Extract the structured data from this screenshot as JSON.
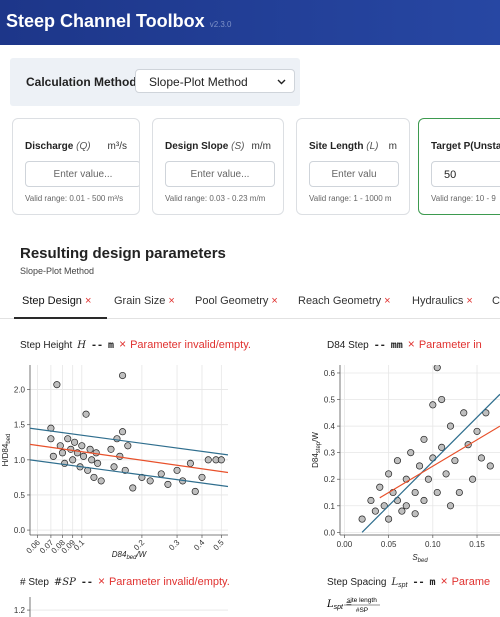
{
  "header": {
    "title": "Steep Channel Toolbox",
    "version": "v2.3.0"
  },
  "method": {
    "label": "Calculation Method",
    "selected": "Slope-Plot Method"
  },
  "inputs": [
    {
      "label": "Discharge",
      "symbol": "(Q)",
      "unit": "m³/s",
      "placeholder": "Enter value...",
      "range": "Valid range: 0.01 - 500 m³/s"
    },
    {
      "label": "Design Slope",
      "symbol": "(S)",
      "unit": "m/m",
      "placeholder": "Enter value...",
      "range": "Valid range: 0.03 - 0.23 m/m"
    },
    {
      "label": "Site Length",
      "symbol": "(L)",
      "unit": "m",
      "placeholder": "Enter valu",
      "range": "Valid range: 1 - 1000 m"
    },
    {
      "label": "Target P(Unstab",
      "value": "50",
      "range": "Valid range: 10 - 9"
    }
  ],
  "results": {
    "title": "Resulting design parameters",
    "subtitle": "Slope-Plot Method"
  },
  "icon": "×",
  "tabs": [
    "Step Design",
    "Grain Size",
    "Pool Geometry",
    "Reach Geometry",
    "Hydraulics",
    "C"
  ],
  "chart_data": [
    {
      "type": "scatter",
      "title": {
        "name": "Step Height",
        "symbol": "H",
        "value": "--",
        "unit": "m",
        "status": "Parameter invalid/empty."
      },
      "x_label": {
        "base": "D84",
        "sub": "bed",
        "rest": "/W"
      },
      "y_label": {
        "base": "H/D84",
        "sub": "bed"
      },
      "xscale": "log",
      "xlim": [
        0.055,
        0.54
      ],
      "ylim": [
        -0.07,
        2.35
      ],
      "xticks": [
        0.06,
        0.07,
        0.08,
        0.09,
        0.1,
        0.2,
        0.3,
        0.4,
        0.5
      ],
      "yticks": [
        {
          "value": 0,
          "label": "0.0"
        },
        0.5,
        {
          "value": 1,
          "label": "1.0"
        },
        1.5,
        {
          "value": 2,
          "label": "2.0"
        }
      ],
      "grid": true,
      "series": [
        {
          "type": "points",
          "color": "#b4b4b4",
          "x": [
            0.05,
            0.075,
            0.07,
            0.07,
            0.072,
            0.078,
            0.08,
            0.082,
            0.085,
            0.088,
            0.09,
            0.092,
            0.095,
            0.098,
            0.1,
            0.102,
            0.105,
            0.107,
            0.11,
            0.112,
            0.115,
            0.118,
            0.12,
            0.125,
            0.14,
            0.145,
            0.15,
            0.155,
            0.16,
            0.16,
            0.165,
            0.17,
            0.18,
            0.2,
            0.22,
            0.25,
            0.27,
            0.3,
            0.32,
            0.35,
            0.37,
            0.4,
            0.43,
            0.47,
            0.5
          ],
          "y": [
            1.25,
            2.07,
            1.45,
            1.3,
            1.05,
            1.2,
            1.1,
            0.95,
            1.3,
            1.15,
            1.0,
            1.25,
            1.1,
            0.9,
            1.2,
            1.05,
            1.65,
            0.85,
            1.15,
            1.0,
            0.75,
            1.1,
            0.95,
            0.7,
            1.15,
            0.9,
            1.3,
            1.05,
            2.2,
            1.4,
            0.85,
            1.2,
            0.6,
            0.75,
            0.7,
            0.8,
            0.65,
            0.85,
            0.7,
            0.95,
            0.55,
            0.75,
            1.0,
            1.0,
            1.0
          ]
        },
        {
          "type": "line",
          "color": "#2f6e8e",
          "x": [
            0.055,
            0.54
          ],
          "y": [
            1.45,
            1.07
          ]
        },
        {
          "type": "line",
          "color": "#e8502a",
          "x": [
            0.055,
            0.54
          ],
          "y": [
            1.22,
            0.82
          ]
        },
        {
          "type": "line",
          "color": "#2f6e8e",
          "x": [
            0.055,
            0.54
          ],
          "y": [
            1.0,
            0.62
          ]
        }
      ]
    },
    {
      "type": "scatter",
      "title": {
        "name": "D84 Step",
        "value": "--",
        "unit": "mm",
        "status": "Parameter in"
      },
      "x_label": {
        "base": "S",
        "sub": "bed"
      },
      "y_label": {
        "base": "D84",
        "sub": "step",
        "rest": "/W"
      },
      "xlim": [
        -0.005,
        0.176
      ],
      "ylim": [
        -0.01,
        0.63
      ],
      "xticks": [
        {
          "value": 0,
          "label": "0.00"
        },
        {
          "value": 0.05,
          "label": "0.05"
        },
        {
          "value": 0.1,
          "label": "0.10"
        },
        {
          "value": 0.15,
          "label": "0.15"
        }
      ],
      "yticks": [
        {
          "value": 0,
          "label": "0.0"
        },
        0.1,
        0.2,
        0.3,
        0.4,
        0.5,
        0.6
      ],
      "grid": true,
      "series": [
        {
          "type": "points",
          "color": "#b4b4b4",
          "x": [
            0.02,
            0.03,
            0.035,
            0.04,
            0.045,
            0.05,
            0.05,
            0.055,
            0.06,
            0.06,
            0.065,
            0.07,
            0.07,
            0.075,
            0.08,
            0.08,
            0.085,
            0.09,
            0.09,
            0.095,
            0.1,
            0.1,
            0.105,
            0.105,
            0.11,
            0.11,
            0.115,
            0.12,
            0.12,
            0.125,
            0.13,
            0.135,
            0.14,
            0.145,
            0.15,
            0.155,
            0.16,
            0.165
          ],
          "y": [
            0.05,
            0.12,
            0.08,
            0.17,
            0.1,
            0.22,
            0.05,
            0.15,
            0.12,
            0.27,
            0.08,
            0.2,
            0.1,
            0.3,
            0.15,
            0.07,
            0.25,
            0.35,
            0.12,
            0.2,
            0.48,
            0.28,
            0.62,
            0.15,
            0.5,
            0.32,
            0.22,
            0.1,
            0.4,
            0.27,
            0.15,
            0.45,
            0.33,
            0.2,
            0.38,
            0.28,
            0.45,
            0.25
          ]
        },
        {
          "type": "line",
          "color": "#2f6e8e",
          "x": [
            0.02,
            0.176
          ],
          "y": [
            0.0,
            0.52
          ]
        },
        {
          "type": "line",
          "color": "#e8502a",
          "x": [
            0.04,
            0.176
          ],
          "y": [
            0.13,
            0.4
          ]
        }
      ]
    },
    {
      "type": "scatter",
      "title": {
        "name": "# Step",
        "symbol": "#SP",
        "value": "--",
        "status": "Parameter invalid/empty."
      },
      "ylim": [
        0,
        1.3
      ],
      "yticks": [
        1.2
      ],
      "grid": true
    },
    {
      "type": "scatter",
      "title": {
        "name": "Step Spacing",
        "symbol": "L",
        "symbol_sub": "spt",
        "value": "--",
        "unit": "m",
        "status": "Parame"
      },
      "formula": {
        "lhs": "L",
        "lhs_sub": "spt",
        "eq": "=",
        "numerator": "site length",
        "denominator": "#SP"
      }
    }
  ]
}
